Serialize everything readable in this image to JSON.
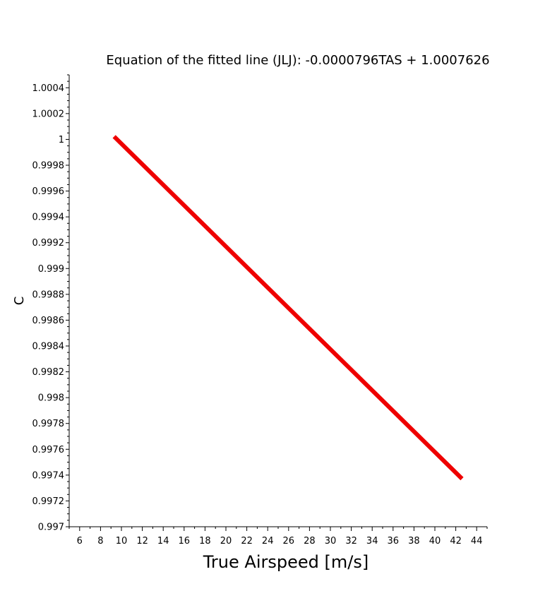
{
  "chart_data": {
    "type": "line",
    "title": "Equation of the fitted line (JLJ): -0.0000796TAS + 1.0007626",
    "xlabel": "True Airspeed [m/s]",
    "ylabel": "C",
    "xlim": [
      5,
      45
    ],
    "ylim": [
      0.997,
      1.0005
    ],
    "x_ticks": [
      "6",
      "8",
      "10",
      "12",
      "14",
      "16",
      "18",
      "20",
      "22",
      "24",
      "26",
      "28",
      "30",
      "32",
      "34",
      "36",
      "38",
      "40",
      "42",
      "44"
    ],
    "y_ticks": [
      "0.997",
      "0.9972",
      "0.9974",
      "0.9976",
      "0.9978",
      "0.998",
      "0.9982",
      "0.9984",
      "0.9986",
      "0.9988",
      "0.999",
      "0.9992",
      "0.9994",
      "0.9996",
      "0.9998",
      "1",
      "1.0002",
      "1.0004"
    ],
    "grid": false,
    "series": [
      {
        "color": "#ee0000",
        "x": [
          9.3,
          42.6
        ],
        "y": [
          1.0000223,
          0.9973716
        ]
      }
    ]
  }
}
